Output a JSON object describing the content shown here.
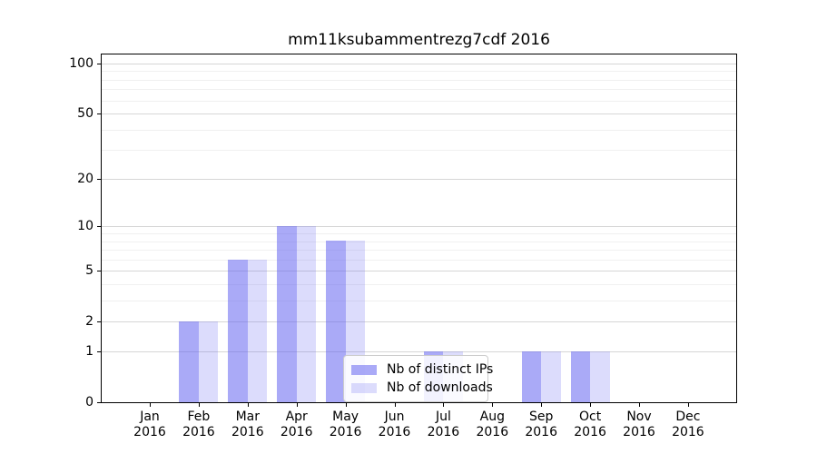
{
  "chart_data": {
    "type": "bar",
    "title": "mm11ksubammentrezg7cdf 2016",
    "categories": [
      "Jan",
      "Feb",
      "Mar",
      "Apr",
      "May",
      "Jun",
      "Jul",
      "Aug",
      "Sep",
      "Oct",
      "Nov",
      "Dec"
    ],
    "year": "2016",
    "series": [
      {
        "name": "Nb of distinct IPs",
        "color": "rgba(94,94,240,0.53)",
        "values": [
          0,
          2,
          6,
          10,
          8,
          0,
          1,
          0,
          1,
          1,
          0,
          0
        ]
      },
      {
        "name": "Nb of downloads",
        "color": "rgba(94,94,240,0.22)",
        "values": [
          0,
          2,
          6,
          10,
          8,
          0,
          1,
          0,
          1,
          1,
          0,
          0
        ]
      }
    ],
    "yscale": "log1p",
    "ylim": [
      0,
      114
    ],
    "yticks": [
      0,
      1,
      2,
      5,
      10,
      20,
      50,
      100
    ],
    "yminor": [
      3,
      4,
      6,
      7,
      8,
      9,
      30,
      40,
      60,
      70,
      80,
      90
    ],
    "grid": {
      "major_color": "#d6d6d6",
      "minor_color": "#f0f0f0"
    },
    "legend_position": "lower center"
  },
  "legend": {
    "items": [
      {
        "label": "Nb of distinct IPs"
      },
      {
        "label": "Nb of downloads"
      }
    ]
  }
}
